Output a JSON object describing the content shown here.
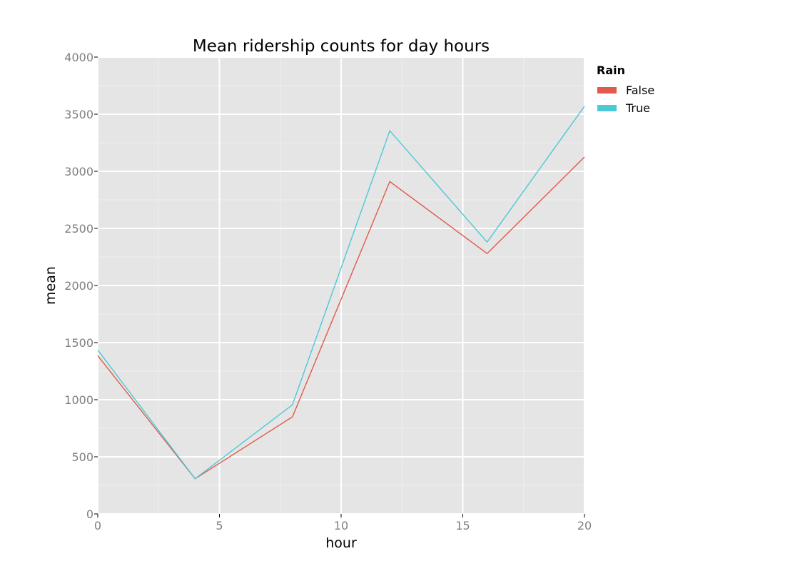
{
  "chart_data": {
    "type": "line",
    "title": "Mean ridership counts for day hours",
    "xlabel": "hour",
    "ylabel": "mean",
    "xlim": [
      0,
      20
    ],
    "ylim": [
      0,
      4000
    ],
    "x_ticks": [
      0,
      5,
      10,
      15,
      20
    ],
    "y_ticks": [
      0,
      500,
      1000,
      1500,
      2000,
      2500,
      3000,
      3500,
      4000
    ],
    "grid": true,
    "legend": {
      "title": "Rain",
      "placement": "right"
    },
    "x": [
      0,
      4,
      8,
      12,
      16,
      20
    ],
    "series": [
      {
        "name": "False",
        "color": "#e05a4e",
        "values": [
          1385,
          308,
          850,
          2910,
          2280,
          3125
        ]
      },
      {
        "name": "True",
        "color": "#4dc9d6",
        "values": [
          1435,
          308,
          955,
          3355,
          2380,
          3570
        ]
      }
    ]
  },
  "colors": {
    "panel_background": "#e5e5e5",
    "major_grid": "#ffffff",
    "minor_grid": "#efefef",
    "tick_label": "#7f7f7f"
  }
}
